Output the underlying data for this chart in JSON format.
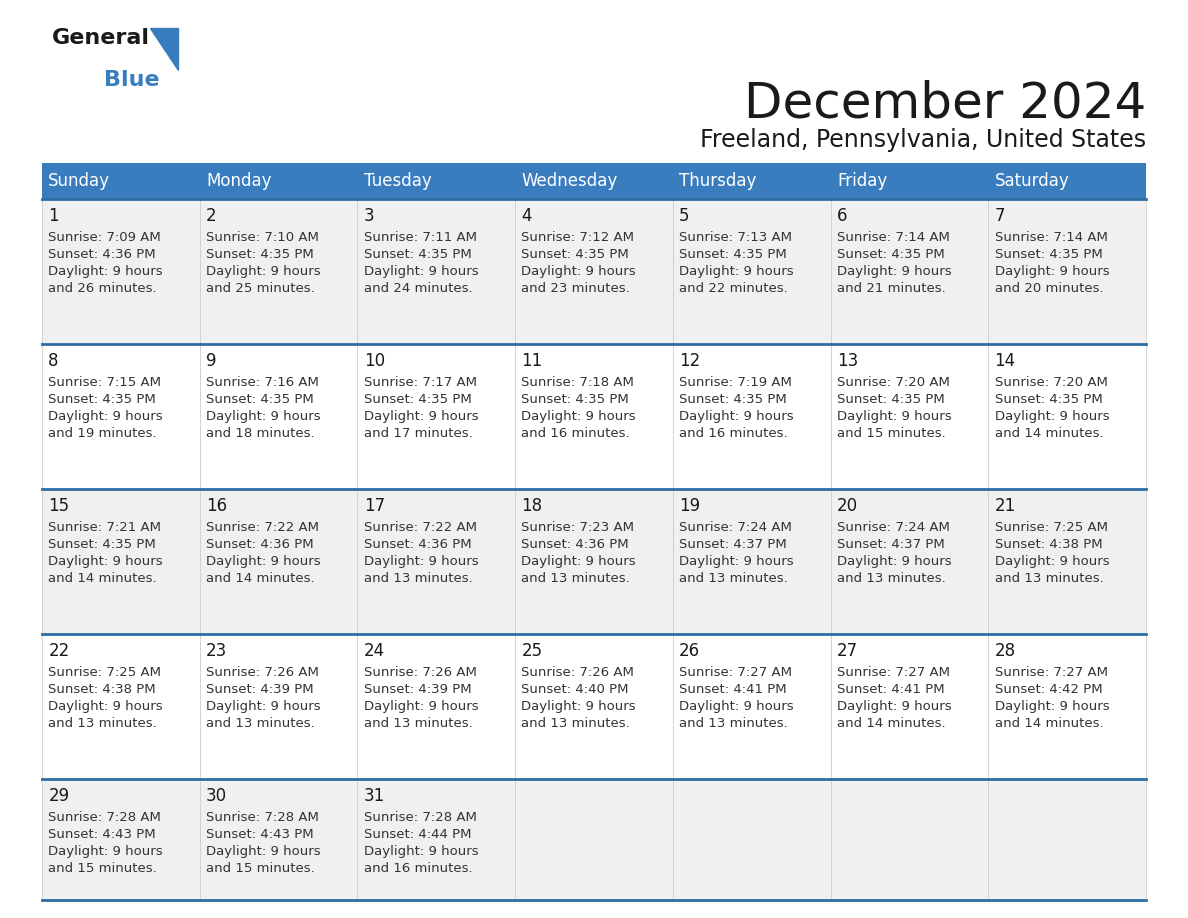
{
  "title": "December 2024",
  "subtitle": "Freeland, Pennsylvania, United States",
  "header_bg_color": "#3a7dbf",
  "header_text_color": "#ffffff",
  "day_names": [
    "Sunday",
    "Monday",
    "Tuesday",
    "Wednesday",
    "Thursday",
    "Friday",
    "Saturday"
  ],
  "row_bg_even": "#f0f0f0",
  "row_bg_odd": "#ffffff",
  "cell_border_color": "#2e6da4",
  "title_color": "#1a1a1a",
  "subtitle_color": "#1a1a1a",
  "logo_general_color": "#1a1a1a",
  "logo_blue_color": "#3a7dbf",
  "logo_triangle_color": "#3a7dbf",
  "days": [
    {
      "day": 1,
      "col": 0,
      "row": 0,
      "sunrise": "7:09 AM",
      "sunset": "4:36 PM",
      "daylight": "9 hours and 26 minutes."
    },
    {
      "day": 2,
      "col": 1,
      "row": 0,
      "sunrise": "7:10 AM",
      "sunset": "4:35 PM",
      "daylight": "9 hours and 25 minutes."
    },
    {
      "day": 3,
      "col": 2,
      "row": 0,
      "sunrise": "7:11 AM",
      "sunset": "4:35 PM",
      "daylight": "9 hours and 24 minutes."
    },
    {
      "day": 4,
      "col": 3,
      "row": 0,
      "sunrise": "7:12 AM",
      "sunset": "4:35 PM",
      "daylight": "9 hours and 23 minutes."
    },
    {
      "day": 5,
      "col": 4,
      "row": 0,
      "sunrise": "7:13 AM",
      "sunset": "4:35 PM",
      "daylight": "9 hours and 22 minutes."
    },
    {
      "day": 6,
      "col": 5,
      "row": 0,
      "sunrise": "7:14 AM",
      "sunset": "4:35 PM",
      "daylight": "9 hours and 21 minutes."
    },
    {
      "day": 7,
      "col": 6,
      "row": 0,
      "sunrise": "7:14 AM",
      "sunset": "4:35 PM",
      "daylight": "9 hours and 20 minutes."
    },
    {
      "day": 8,
      "col": 0,
      "row": 1,
      "sunrise": "7:15 AM",
      "sunset": "4:35 PM",
      "daylight": "9 hours and 19 minutes."
    },
    {
      "day": 9,
      "col": 1,
      "row": 1,
      "sunrise": "7:16 AM",
      "sunset": "4:35 PM",
      "daylight": "9 hours and 18 minutes."
    },
    {
      "day": 10,
      "col": 2,
      "row": 1,
      "sunrise": "7:17 AM",
      "sunset": "4:35 PM",
      "daylight": "9 hours and 17 minutes."
    },
    {
      "day": 11,
      "col": 3,
      "row": 1,
      "sunrise": "7:18 AM",
      "sunset": "4:35 PM",
      "daylight": "9 hours and 16 minutes."
    },
    {
      "day": 12,
      "col": 4,
      "row": 1,
      "sunrise": "7:19 AM",
      "sunset": "4:35 PM",
      "daylight": "9 hours and 16 minutes."
    },
    {
      "day": 13,
      "col": 5,
      "row": 1,
      "sunrise": "7:20 AM",
      "sunset": "4:35 PM",
      "daylight": "9 hours and 15 minutes."
    },
    {
      "day": 14,
      "col": 6,
      "row": 1,
      "sunrise": "7:20 AM",
      "sunset": "4:35 PM",
      "daylight": "9 hours and 14 minutes."
    },
    {
      "day": 15,
      "col": 0,
      "row": 2,
      "sunrise": "7:21 AM",
      "sunset": "4:35 PM",
      "daylight": "9 hours and 14 minutes."
    },
    {
      "day": 16,
      "col": 1,
      "row": 2,
      "sunrise": "7:22 AM",
      "sunset": "4:36 PM",
      "daylight": "9 hours and 14 minutes."
    },
    {
      "day": 17,
      "col": 2,
      "row": 2,
      "sunrise": "7:22 AM",
      "sunset": "4:36 PM",
      "daylight": "9 hours and 13 minutes."
    },
    {
      "day": 18,
      "col": 3,
      "row": 2,
      "sunrise": "7:23 AM",
      "sunset": "4:36 PM",
      "daylight": "9 hours and 13 minutes."
    },
    {
      "day": 19,
      "col": 4,
      "row": 2,
      "sunrise": "7:24 AM",
      "sunset": "4:37 PM",
      "daylight": "9 hours and 13 minutes."
    },
    {
      "day": 20,
      "col": 5,
      "row": 2,
      "sunrise": "7:24 AM",
      "sunset": "4:37 PM",
      "daylight": "9 hours and 13 minutes."
    },
    {
      "day": 21,
      "col": 6,
      "row": 2,
      "sunrise": "7:25 AM",
      "sunset": "4:38 PM",
      "daylight": "9 hours and 13 minutes."
    },
    {
      "day": 22,
      "col": 0,
      "row": 3,
      "sunrise": "7:25 AM",
      "sunset": "4:38 PM",
      "daylight": "9 hours and 13 minutes."
    },
    {
      "day": 23,
      "col": 1,
      "row": 3,
      "sunrise": "7:26 AM",
      "sunset": "4:39 PM",
      "daylight": "9 hours and 13 minutes."
    },
    {
      "day": 24,
      "col": 2,
      "row": 3,
      "sunrise": "7:26 AM",
      "sunset": "4:39 PM",
      "daylight": "9 hours and 13 minutes."
    },
    {
      "day": 25,
      "col": 3,
      "row": 3,
      "sunrise": "7:26 AM",
      "sunset": "4:40 PM",
      "daylight": "9 hours and 13 minutes."
    },
    {
      "day": 26,
      "col": 4,
      "row": 3,
      "sunrise": "7:27 AM",
      "sunset": "4:41 PM",
      "daylight": "9 hours and 13 minutes."
    },
    {
      "day": 27,
      "col": 5,
      "row": 3,
      "sunrise": "7:27 AM",
      "sunset": "4:41 PM",
      "daylight": "9 hours and 14 minutes."
    },
    {
      "day": 28,
      "col": 6,
      "row": 3,
      "sunrise": "7:27 AM",
      "sunset": "4:42 PM",
      "daylight": "9 hours and 14 minutes."
    },
    {
      "day": 29,
      "col": 0,
      "row": 4,
      "sunrise": "7:28 AM",
      "sunset": "4:43 PM",
      "daylight": "9 hours and 15 minutes."
    },
    {
      "day": 30,
      "col": 1,
      "row": 4,
      "sunrise": "7:28 AM",
      "sunset": "4:43 PM",
      "daylight": "9 hours and 15 minutes."
    },
    {
      "day": 31,
      "col": 2,
      "row": 4,
      "sunrise": "7:28 AM",
      "sunset": "4:44 PM",
      "daylight": "9 hours and 16 minutes."
    }
  ]
}
